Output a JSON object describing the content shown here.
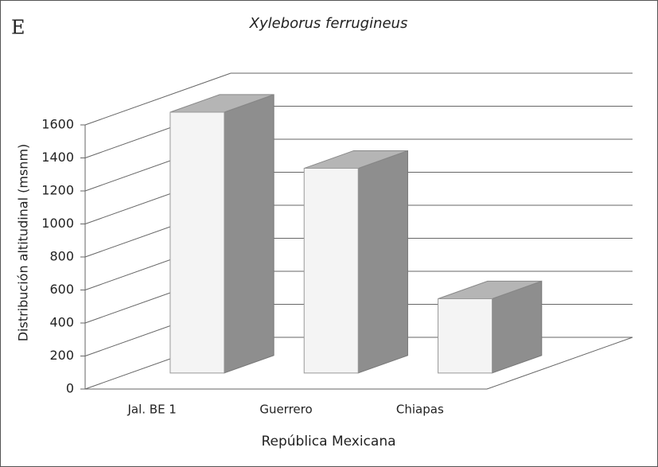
{
  "chart_data": {
    "type": "bar3d",
    "panel_label": "E",
    "title": "Xyleborus ferrugineus",
    "x_label": "República Mexicana",
    "y_label": "Distribución altitudinal (msnm)",
    "categories": [
      "Jal. BE 1",
      "Guerrero",
      "Chiapas"
    ],
    "values": [
      1580,
      1240,
      450
    ],
    "ylim": [
      0,
      1600
    ],
    "yticks": [
      0,
      200,
      400,
      600,
      800,
      1000,
      1200,
      1400,
      1600
    ],
    "grid": true,
    "color": "#f4f4f4"
  }
}
